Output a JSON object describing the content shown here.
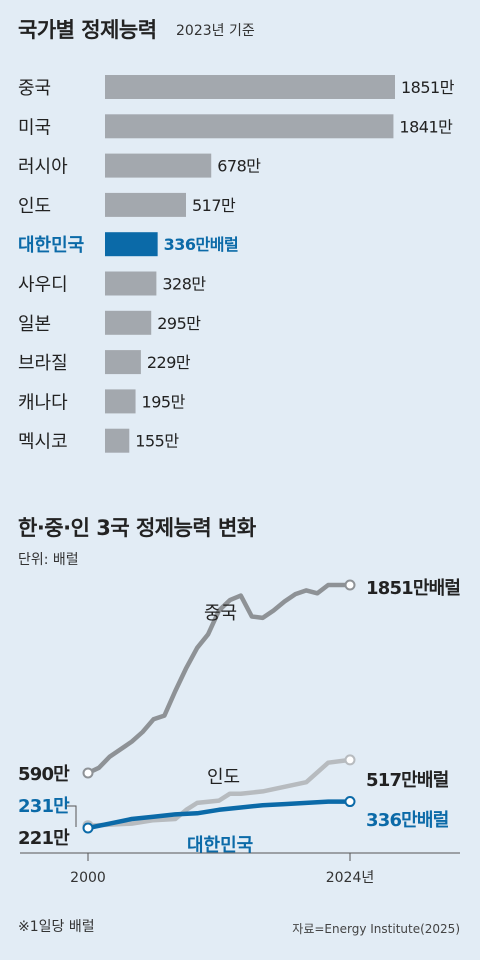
{
  "colors": {
    "gray": "#a3a8ae",
    "highlight": "#0b6aa8",
    "china_line": "#8e9296",
    "india_line": "#b7bbbf",
    "korea_line": "#0b6aa8"
  },
  "chart_data": [
    {
      "type": "bar",
      "title": "국가별 정제능력",
      "subtitle": "2023년 기준",
      "categories": [
        "중국",
        "미국",
        "러시아",
        "인도",
        "대한민국",
        "사우디",
        "일본",
        "브라질",
        "캐나다",
        "멕시코"
      ],
      "values": [
        1851,
        1841,
        678,
        517,
        336,
        328,
        295,
        229,
        195,
        155
      ],
      "value_labels": [
        "1851만",
        "1841만",
        "678만",
        "517만",
        "336만배럴",
        "328만",
        "295만",
        "229만",
        "195만",
        "155만"
      ],
      "highlight": "대한민국"
    },
    {
      "type": "line",
      "title": "한·중·인 3국 정제능력 변화",
      "unit": "단위: 배럴",
      "x_range": [
        2000,
        2024
      ],
      "x_ticks": [
        "2000",
        "2024년"
      ],
      "series": [
        {
          "name": "중국",
          "start_label": "590만",
          "end_label": "1851만배럴",
          "x": [
            2000,
            2001,
            2002,
            2004,
            2005,
            2006,
            2007,
            2008,
            2009,
            2010,
            2011,
            2012,
            2013,
            2014,
            2015,
            2016,
            2017,
            2018,
            2019,
            2020,
            2021,
            2022,
            2023,
            2024
          ],
          "values": [
            590,
            625,
            700,
            800,
            865,
            950,
            975,
            1140,
            1295,
            1430,
            1520,
            1680,
            1750,
            1780,
            1640,
            1630,
            1680,
            1740,
            1790,
            1815,
            1795,
            1851,
            1851,
            1851
          ]
        },
        {
          "name": "인도",
          "start_label": "231만",
          "end_label": "517만배럴",
          "x": [
            2000,
            2004,
            2006,
            2008,
            2009,
            2010,
            2012,
            2013,
            2014,
            2016,
            2018,
            2020,
            2022,
            2024
          ],
          "values": [
            231,
            240,
            255,
            260,
            300,
            330,
            340,
            370,
            370,
            380,
            400,
            420,
            505,
            517
          ]
        },
        {
          "name": "대한민국",
          "start_label": "221만",
          "end_label": "336만배럴",
          "x": [
            2000,
            2002,
            2004,
            2006,
            2008,
            2010,
            2012,
            2014,
            2016,
            2018,
            2020,
            2022,
            2024
          ],
          "values": [
            221,
            240,
            260,
            270,
            280,
            285,
            300,
            310,
            320,
            325,
            330,
            336,
            336
          ]
        }
      ]
    }
  ],
  "footnote": "※1일당 배럴",
  "source": "자료=Energy Institute(2025)"
}
